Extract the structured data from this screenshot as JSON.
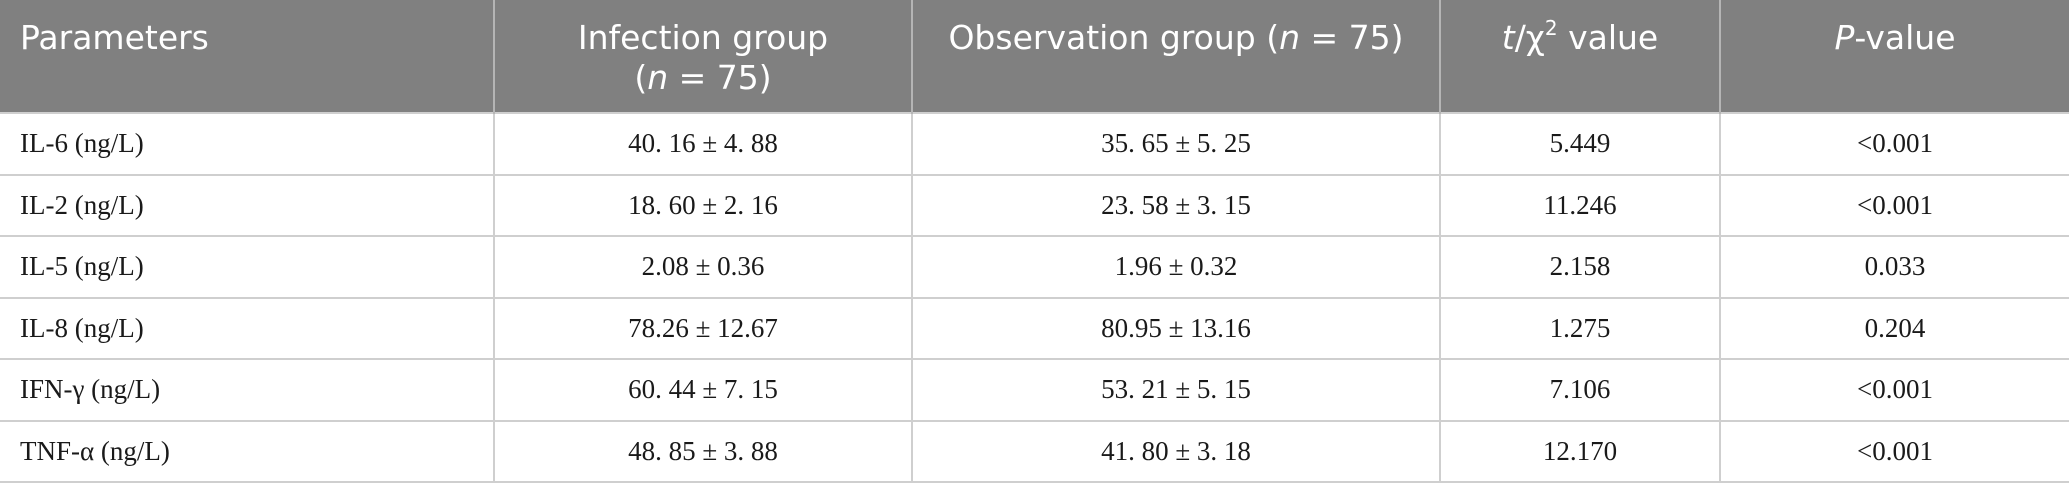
{
  "header": {
    "parameters": "Parameters",
    "infection_group_line1": "Infection group",
    "infection_group_n": "n",
    "infection_group_eq": " = 75)",
    "observation_group_label": "Observation group (",
    "observation_group_n": "n",
    "observation_group_eq": " = 75)",
    "t_symbol": "t",
    "chi_part": "/χ",
    "superscript": "2",
    "value_word": " value",
    "p_symbol": "P",
    "p_suffix": "-value"
  },
  "rows": [
    {
      "parameter": "IL-6 (ng/L)",
      "infection": "40. 16 ± 4. 88",
      "observation": "35. 65 ± 5. 25",
      "t_chi": "5.449",
      "p": "<0.001"
    },
    {
      "parameter": "IL-2 (ng/L)",
      "infection": "18. 60 ± 2. 16",
      "observation": "23. 58 ± 3. 15",
      "t_chi": "11.246",
      "p": "<0.001"
    },
    {
      "parameter": "IL-5 (ng/L)",
      "infection": "2.08 ± 0.36",
      "observation": "1.96 ± 0.32",
      "t_chi": "2.158",
      "p": "0.033"
    },
    {
      "parameter": "IL-8 (ng/L)",
      "infection": "78.26 ± 12.67",
      "observation": "80.95 ± 13.16",
      "t_chi": "1.275",
      "p": "0.204"
    },
    {
      "parameter": "IFN-γ (ng/L)",
      "infection": "60. 44 ± 7. 15",
      "observation": "53. 21 ± 5. 15",
      "t_chi": "7.106",
      "p": "<0.001"
    },
    {
      "parameter": "TNF-α (ng/L)",
      "infection": "48. 85 ± 3. 88",
      "observation": "41. 80 ± 3. 18",
      "t_chi": "12.170",
      "p": "<0.001"
    }
  ]
}
